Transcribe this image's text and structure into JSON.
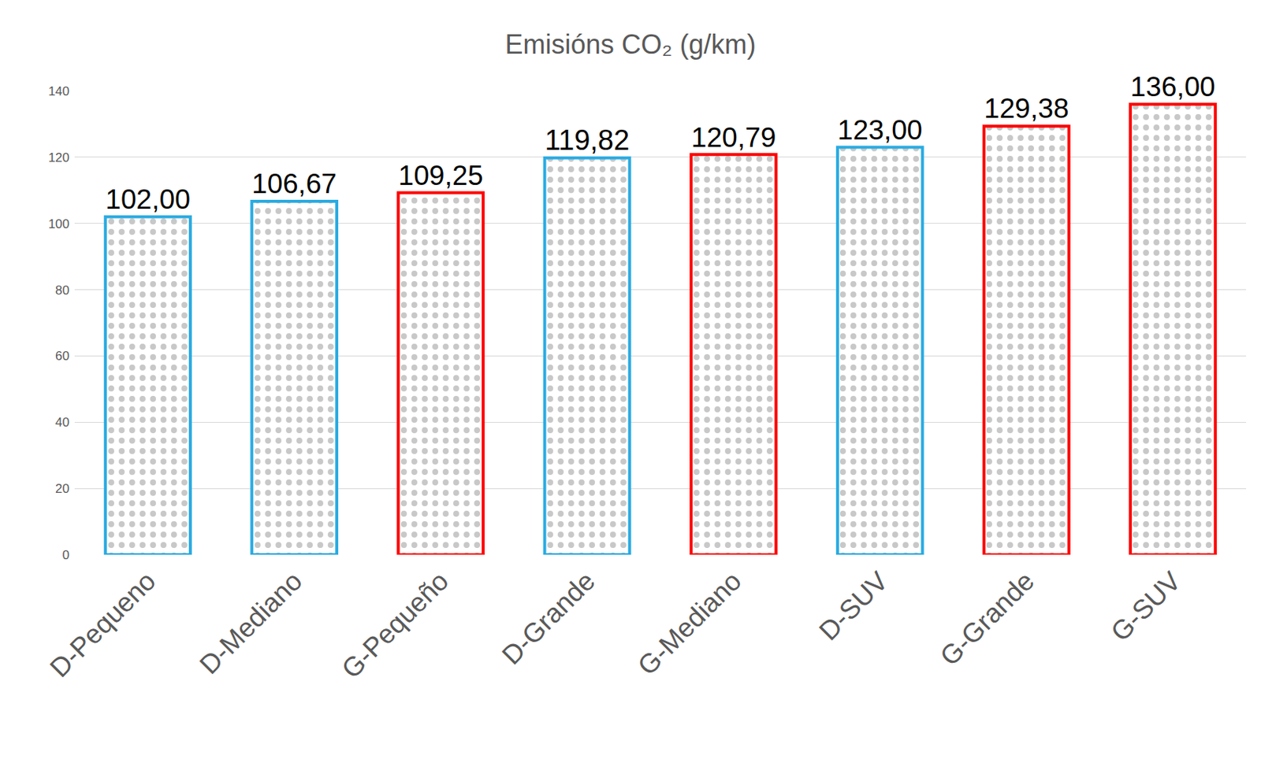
{
  "chart_data": {
    "type": "bar",
    "title": "Emisións CO₂ (g/km)",
    "categories": [
      "D-Pequeno",
      "D-Mediano",
      "G-Pequeño",
      "D-Grande",
      "G-Mediano",
      "D-SUV",
      "G-Grande",
      "G-SUV"
    ],
    "values": [
      102.0,
      106.67,
      109.25,
      119.82,
      120.79,
      123.0,
      129.38,
      136.0
    ],
    "value_labels": [
      "102,00",
      "106,67",
      "109,25",
      "119,82",
      "120,79",
      "123,00",
      "129,38",
      "136,00"
    ],
    "colors": [
      "#29abe2",
      "#29abe2",
      "#ff0000",
      "#29abe2",
      "#ff0000",
      "#29abe2",
      "#ff0000",
      "#ff0000"
    ],
    "ylim": [
      0,
      140
    ],
    "yticks": [
      0,
      20,
      40,
      60,
      80,
      100,
      120,
      140
    ],
    "grid": true,
    "data_labels": true
  }
}
